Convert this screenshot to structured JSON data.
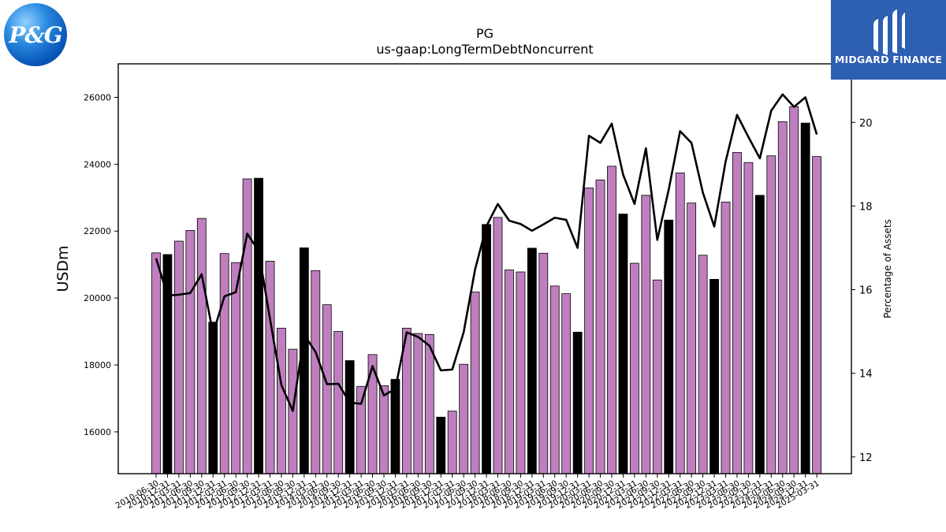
{
  "logos": {
    "left_text": "P&G",
    "right_text": "MIDGARD FINANCE"
  },
  "chart_data": {
    "type": "bar",
    "title": "PG",
    "subtitle": "us-gaap:LongTermDebtNoncurrent",
    "ylabel": "USDm",
    "y2label": "Percentage of Assets",
    "ylim": [
      14750,
      27000
    ],
    "y2lim": [
      11.6,
      21.4
    ],
    "yticks": [
      16000,
      18000,
      20000,
      22000,
      24000,
      26000
    ],
    "y2ticks": [
      12,
      14,
      16,
      18,
      20
    ],
    "colors": {
      "bar": "#bf7fbf",
      "bar_fiscal_year": "#000000",
      "line": "#000000"
    },
    "categories": [
      "2010-06-30",
      "2010-12-31",
      "2011-03-31",
      "2011-06-30",
      "2011-09-30",
      "2011-12-31",
      "2012-03-31",
      "2012-06-30",
      "2012-09-30",
      "2012-12-31",
      "2013-03-31",
      "2013-06-30",
      "2013-09-30",
      "2013-12-31",
      "2014-03-31",
      "2014-06-30",
      "2014-09-30",
      "2014-12-31",
      "2015-03-31",
      "2015-06-30",
      "2015-09-30",
      "2015-12-31",
      "2016-03-31",
      "2016-06-30",
      "2016-09-30",
      "2016-12-31",
      "2017-03-31",
      "2017-06-30",
      "2017-09-30",
      "2017-12-31",
      "2018-03-31",
      "2018-06-30",
      "2018-09-30",
      "2018-12-31",
      "2019-03-31",
      "2019-06-30",
      "2019-09-30",
      "2019-12-31",
      "2020-03-31",
      "2020-06-30",
      "2020-09-30",
      "2020-12-31",
      "2021-03-31",
      "2021-06-30",
      "2021-09-30",
      "2021-12-31",
      "2022-03-31",
      "2022-06-30",
      "2022-09-30",
      "2022-12-31",
      "2023-03-31",
      "2023-06-30",
      "2023-09-30",
      "2023-12-31",
      "2024-03-31",
      "2024-06-30",
      "2024-09-30",
      "2024-12-31",
      "2025-03-31"
    ],
    "tick_labels": [
      "2010-06-30",
      "2010-12-31",
      "2011-03-31",
      "2011-06-30",
      "2011-09-30",
      "2011-12-31",
      "2012-03-31",
      "2012-06-30",
      "2012-09-30",
      "2012-12-31",
      "2013-03-31",
      "2013-06-30",
      "2013-09-30",
      "2013-12-31",
      "2014-03-31",
      "2014-06-30",
      "2014-09-30",
      "2014-12-31",
      "2015-03-31",
      "2015-06-30",
      "2015-09-30",
      "2015-12-31",
      "2016-03-31",
      "2016-06-30",
      "2016-09-30",
      "2016-12-31",
      "2017-03-31",
      "2017-06-30",
      "2017-09-30",
      "2017-12-31",
      "2018-03-31",
      "2018-06-30",
      "2018-09-30",
      "2018-12-31",
      "2019-03-31",
      "2019-06-30",
      "2019-09-30",
      "2019-12-31",
      "2020-03-31",
      "2020-06-30",
      "2020-09-30",
      "2020-12-31",
      "2021-03-31",
      "2021-06-30",
      "2021-09-30",
      "2021-12-31",
      "2022-03-31",
      "2022-06-30",
      "2022-09-30",
      "2022-12-31",
      "2023-03-31",
      "2023-06-30",
      "2023-09-30",
      "2023-12-31",
      "2024-03-31",
      "2024-06-30",
      "2024-09-30",
      "2024-12-31",
      "2025-03-31"
    ],
    "values": [
      21350,
      21300,
      21700,
      22020,
      22380,
      19280,
      21330,
      21060,
      23560,
      23580,
      21100,
      19100,
      18470,
      21500,
      20820,
      19800,
      19000,
      18130,
      17360,
      18310,
      17380,
      17570,
      19100,
      18940,
      18910,
      16440,
      16620,
      18020,
      20180,
      22200,
      22410,
      20840,
      20780,
      21490,
      21340,
      20360,
      20130,
      18980,
      23290,
      23530,
      23940,
      22510,
      21040,
      23070,
      20540,
      22330,
      23740,
      22840,
      21280,
      20560,
      22870,
      24350,
      24050,
      23070,
      24250,
      25270,
      25720,
      25230,
      24230
    ],
    "fiscal_year_bar": [
      false,
      true,
      false,
      false,
      false,
      true,
      false,
      false,
      false,
      true,
      false,
      false,
      false,
      true,
      false,
      false,
      false,
      true,
      false,
      false,
      false,
      true,
      false,
      false,
      false,
      true,
      false,
      false,
      false,
      true,
      false,
      false,
      false,
      true,
      false,
      false,
      false,
      true,
      false,
      false,
      false,
      true,
      false,
      false,
      false,
      true,
      false,
      false,
      false,
      true,
      false,
      false,
      false,
      true,
      false,
      false,
      false,
      true,
      false
    ],
    "pct_assets": [
      16.75,
      15.86,
      15.88,
      15.92,
      16.37,
      14.95,
      15.84,
      15.94,
      17.34,
      16.93,
      15.3,
      13.72,
      13.1,
      14.92,
      14.51,
      13.74,
      13.75,
      13.3,
      13.27,
      14.17,
      13.47,
      13.63,
      14.98,
      14.87,
      14.66,
      14.07,
      14.09,
      14.98,
      16.48,
      17.52,
      18.05,
      17.65,
      17.57,
      17.41,
      17.56,
      17.72,
      17.67,
      17.0,
      19.68,
      19.51,
      19.97,
      18.75,
      18.05,
      19.38,
      17.19,
      18.39,
      19.79,
      19.51,
      18.32,
      17.51,
      19.07,
      20.18,
      19.65,
      19.14,
      20.28,
      20.67,
      20.37,
      20.6,
      19.71
    ]
  }
}
